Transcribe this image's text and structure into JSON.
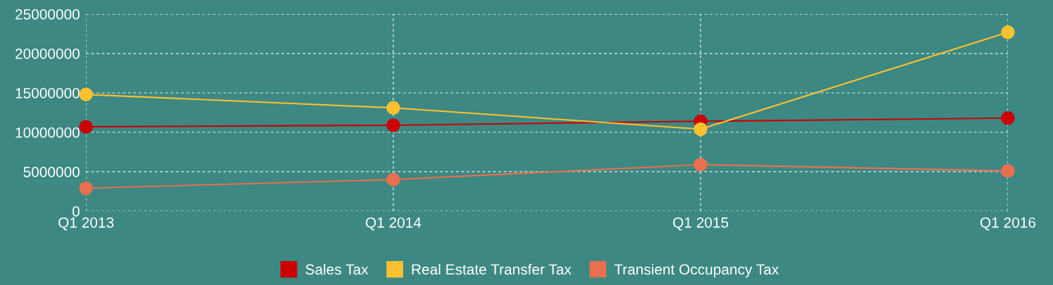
{
  "chart_data": {
    "type": "line",
    "categories": [
      "Q1 2013",
      "Q1 2014",
      "Q1 2015",
      "Q1 2016"
    ],
    "series": [
      {
        "name": "Sales Tax",
        "color": "#cc0000",
        "values": [
          10700000,
          10900000,
          11400000,
          11800000
        ]
      },
      {
        "name": "Real Estate Transfer Tax",
        "color": "#fdc130",
        "values": [
          14800000,
          13100000,
          10400000,
          22700000
        ]
      },
      {
        "name": "Transient Occupancy Tax",
        "color": "#e8704e",
        "values": [
          2900000,
          4000000,
          5900000,
          5100000
        ]
      }
    ],
    "ylim": [
      0,
      25000000
    ],
    "yticks": [
      0,
      5000000,
      10000000,
      15000000,
      20000000,
      25000000
    ],
    "grid": true,
    "legend": "bottom",
    "marker": "circle",
    "line_style": "solid"
  }
}
